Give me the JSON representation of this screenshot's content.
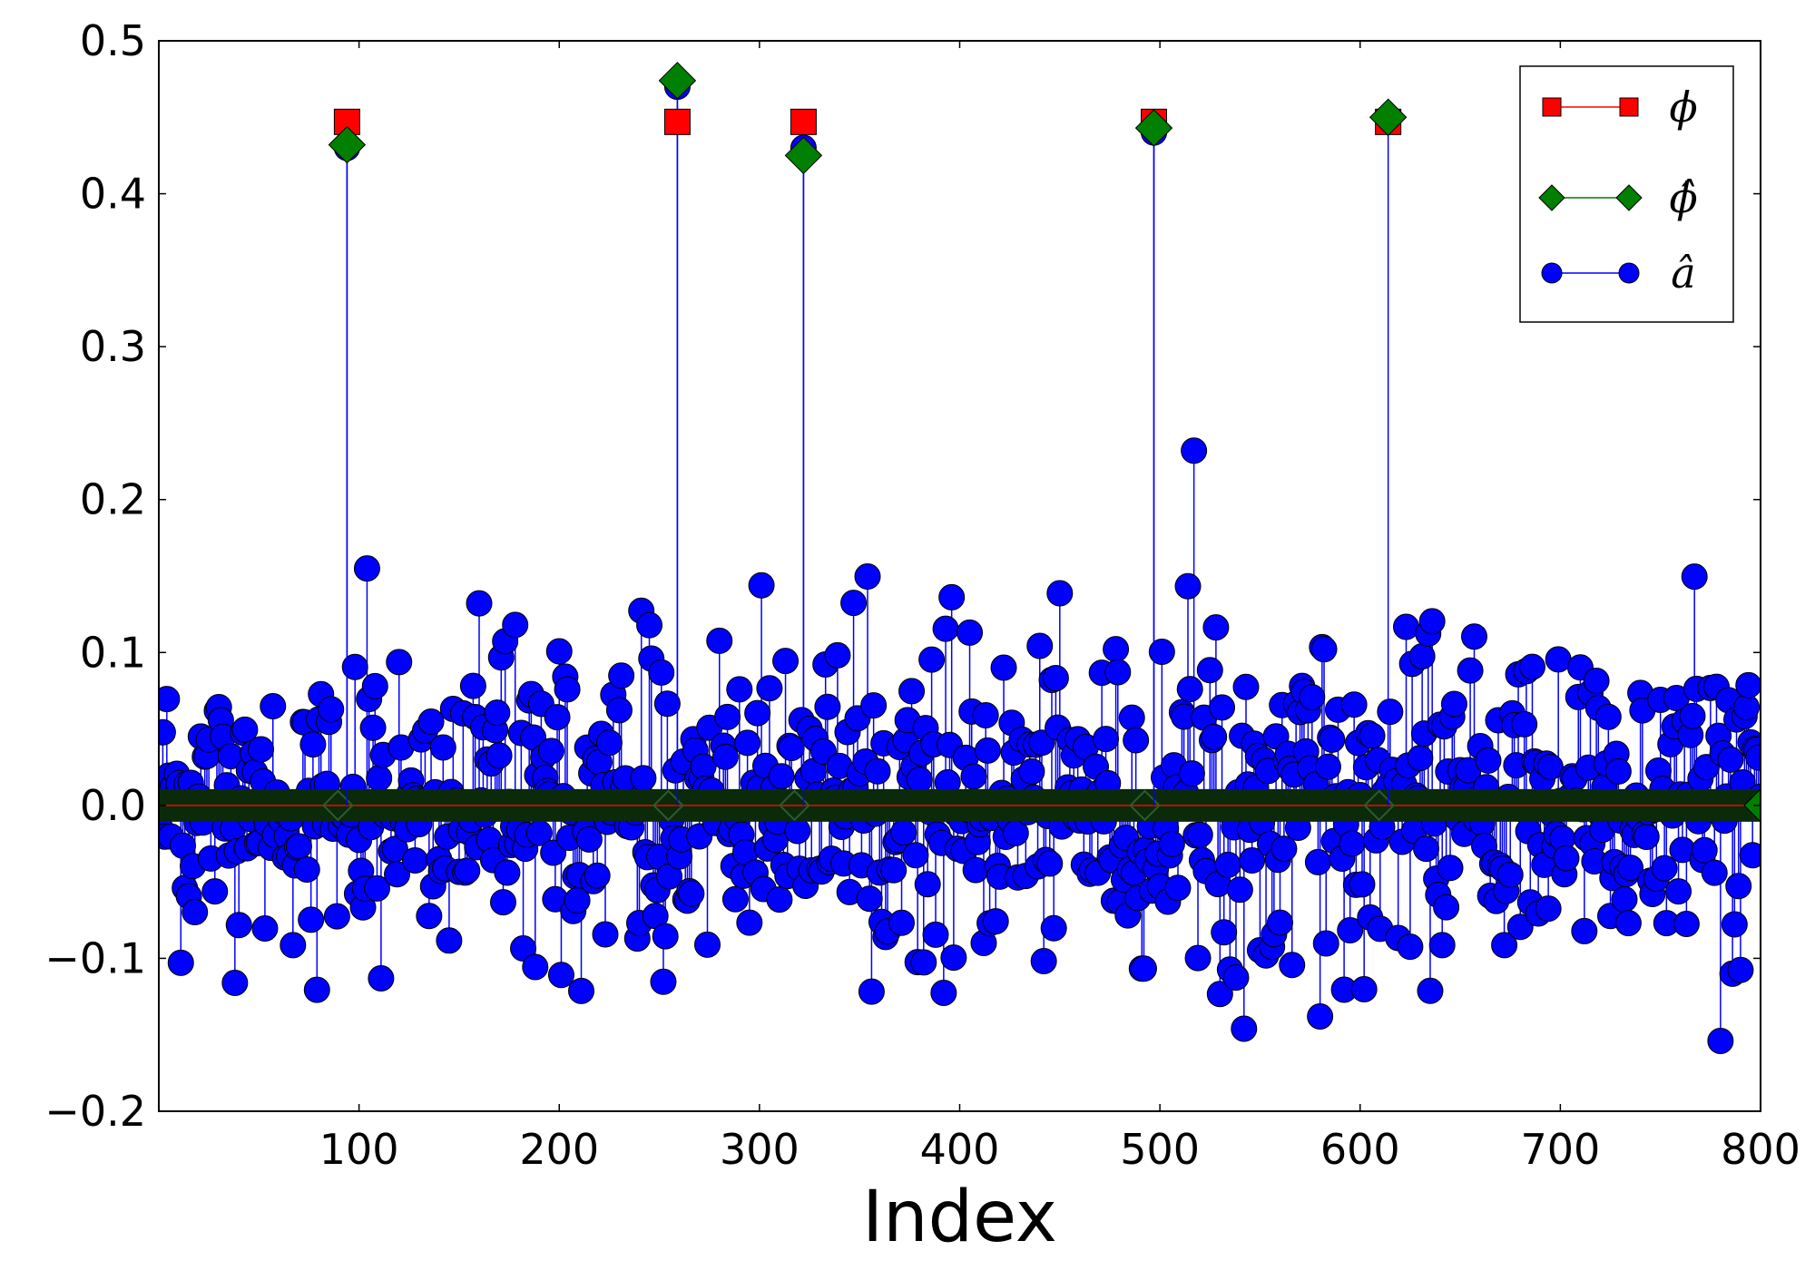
{
  "chart_data": {
    "type": "scatter",
    "title": "",
    "xlabel": "Index",
    "ylabel": "",
    "xlim": [
      0,
      800
    ],
    "ylim": [
      -0.2,
      0.5
    ],
    "grid": false,
    "legend_position": "top-right",
    "xticks": [
      100,
      200,
      300,
      400,
      500,
      600,
      700,
      800
    ],
    "xtick_labels": [
      "100",
      "200",
      "300",
      "400",
      "500",
      "600",
      "700",
      "800"
    ],
    "yticks": [
      -0.2,
      -0.1,
      0.0,
      0.1,
      0.2,
      0.3,
      0.4,
      0.5
    ],
    "ytick_labels": [
      "−0.2",
      "−0.1",
      "0.0",
      "0.1",
      "0.2",
      "0.3",
      "0.4",
      "0.5"
    ],
    "series": [
      {
        "name": "ϕ",
        "marker": "square",
        "color": "#ff0000",
        "style": "stem",
        "x": [
          94,
          259,
          322,
          497,
          614
        ],
        "y": [
          0.447,
          0.447,
          0.447,
          0.447,
          0.447
        ],
        "baseline_value": 0.0
      },
      {
        "name": "ϕ̂",
        "marker": "diamond",
        "color": "#007f00",
        "style": "stem",
        "x": [
          94,
          259,
          322,
          497,
          614
        ],
        "y": [
          0.432,
          0.474,
          0.425,
          0.443,
          0.45
        ],
        "baseline_value": 0.0
      },
      {
        "name": "â",
        "marker": "circle",
        "color": "#0000ff",
        "style": "stem",
        "note_count": 800,
        "highlighted_x": [
          94,
          104,
          259,
          322,
          497,
          517,
          542,
          580,
          780
        ],
        "highlighted_y": [
          0.43,
          0.155,
          0.47,
          0.43,
          0.44,
          0.232,
          -0.146,
          -0.138,
          -0.154
        ],
        "value_range": [
          -0.155,
          0.475
        ]
      }
    ]
  },
  "colors": {
    "phi": "#ff0000",
    "phi_hat": "#007f00",
    "a_hat": "#0000ff",
    "baseline": "#0a2a0a",
    "axis": "#000000"
  }
}
